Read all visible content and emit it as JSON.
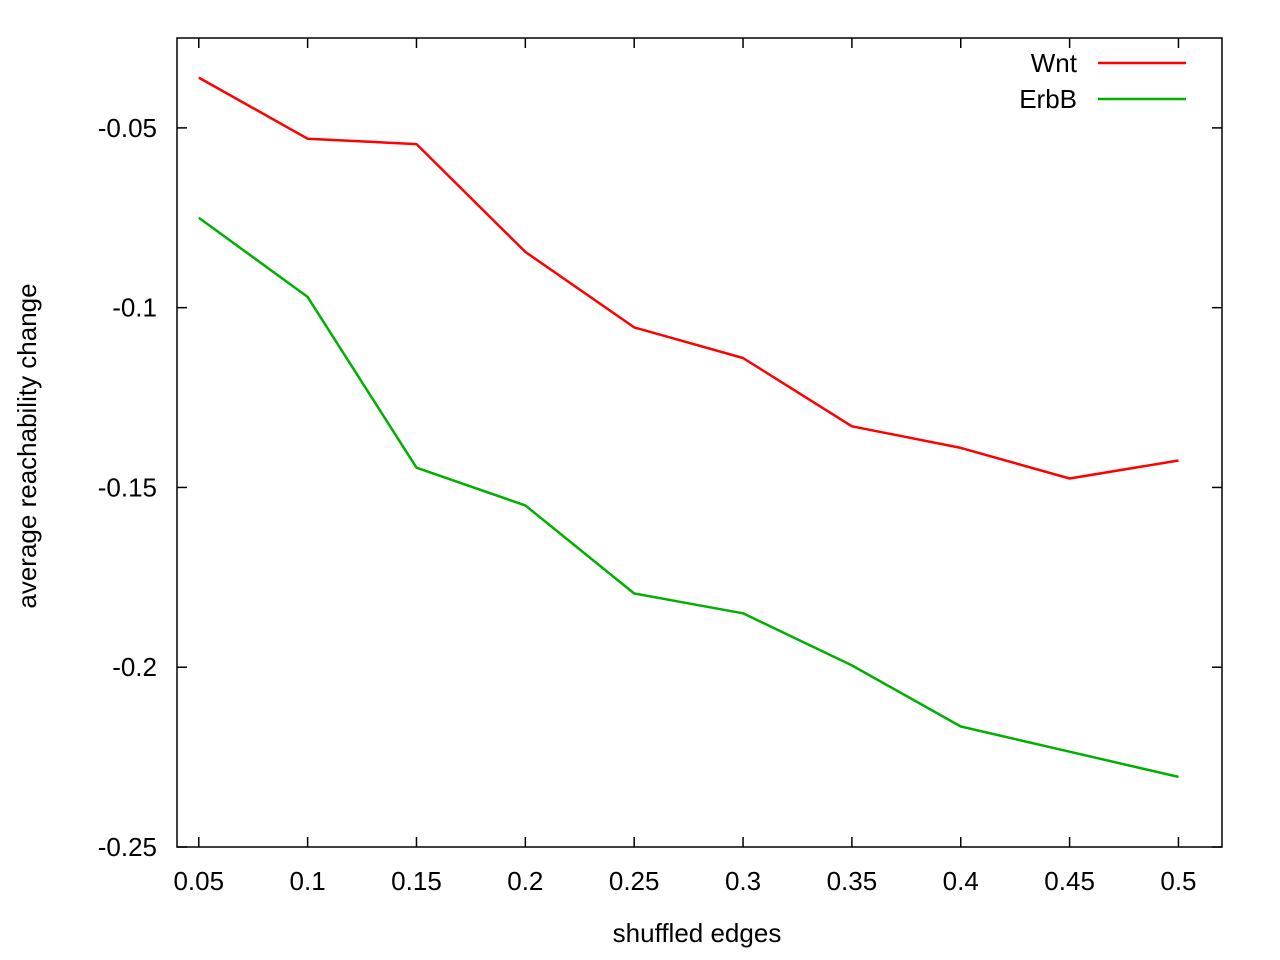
{
  "chart_data": {
    "type": "line",
    "title": "",
    "xlabel": "shuffled edges",
    "ylabel": "average reachability change",
    "x": [
      0.05,
      0.1,
      0.15,
      0.2,
      0.25,
      0.3,
      0.35,
      0.4,
      0.45,
      0.5
    ],
    "x_tick_labels": [
      "0.05",
      "0.1",
      "0.15",
      "0.2",
      "0.25",
      "0.3",
      "0.35",
      "0.4",
      "0.45",
      "0.5"
    ],
    "xlim": [
      0.04,
      0.52
    ],
    "ylim": [
      -0.25,
      -0.025
    ],
    "y_ticks": [
      -0.05,
      -0.1,
      -0.15,
      -0.2,
      -0.25
    ],
    "y_tick_labels": [
      "-0.05",
      "-0.1",
      "-0.15",
      "-0.2",
      "-0.25"
    ],
    "grid": false,
    "legend_position": "top-right",
    "series": [
      {
        "name": "Wnt",
        "color": "#ff0000",
        "values": [
          -0.036,
          -0.053,
          -0.0545,
          -0.0845,
          -0.1055,
          -0.114,
          -0.133,
          -0.139,
          -0.1475,
          -0.1425
        ]
      },
      {
        "name": "ErbB",
        "color": "#00b000",
        "values": [
          -0.075,
          -0.097,
          -0.1445,
          -0.155,
          -0.1795,
          -0.185,
          -0.1995,
          -0.2165,
          -0.2235,
          -0.2305
        ]
      }
    ]
  }
}
